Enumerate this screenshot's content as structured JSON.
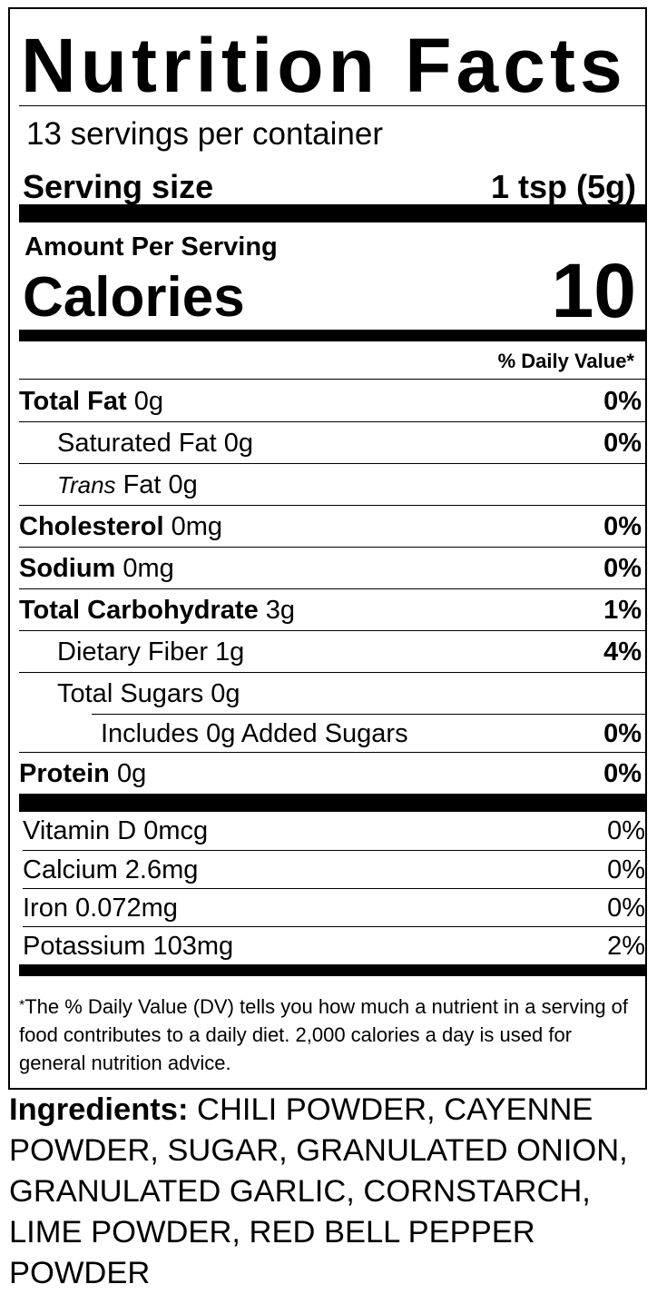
{
  "label": {
    "title": "Nutrition Facts",
    "servings_per_container": "13 servings per container",
    "serving_size_label": "Serving size",
    "serving_size_value": "1 tsp (5g)",
    "amount_per_serving": "Amount Per Serving",
    "calories_label": "Calories",
    "calories_value": "10",
    "daily_value_header": "% Daily Value*"
  },
  "nutrients": [
    {
      "label": "Total Fat",
      "amount": " 0g",
      "dv": "0%"
    },
    {
      "label": "Saturated Fat",
      "amount": " 0g",
      "dv": "0%"
    },
    {
      "label_italic": "Trans",
      "label": " Fat",
      "amount": " 0g",
      "dv": ""
    },
    {
      "label": "Cholesterol",
      "amount": " 0mg",
      "dv": "0%"
    },
    {
      "label": "Sodium",
      "amount": " 0mg",
      "dv": "0%"
    },
    {
      "label": "Total Carbohydrate",
      "amount": " 3g",
      "dv": "1%"
    },
    {
      "label": "Dietary Fiber",
      "amount": " 1g",
      "dv": "4%"
    },
    {
      "label": "Total Sugars",
      "amount": " 0g",
      "dv": ""
    },
    {
      "label": "Includes 0g Added Sugars",
      "amount": "",
      "dv": "0%"
    },
    {
      "label": "Protein",
      "amount": " 0g",
      "dv": "0%"
    }
  ],
  "vitamins": [
    {
      "text": "Vitamin D 0mcg",
      "dv": "0%"
    },
    {
      "text": "Calcium 2.6mg",
      "dv": "0%"
    },
    {
      "text": "Iron 0.072mg",
      "dv": "0%"
    },
    {
      "text": "Potassium 103mg",
      "dv": "2%"
    }
  ],
  "footnote": {
    "star": "*",
    "text": "The % Daily Value (DV) tells you how much a nutrient in a serving of food contributes to a daily diet. 2,000 calories a day is used for general nutrition advice."
  },
  "ingredients": {
    "label": "Ingredients:",
    "text": " CHILI POWDER, CAYENNE POWDER, SUGAR, GRANULATED ONION, GRANULATED GARLIC, CORNSTARCH, LIME POWDER, RED BELL PEPPER POWDER"
  }
}
